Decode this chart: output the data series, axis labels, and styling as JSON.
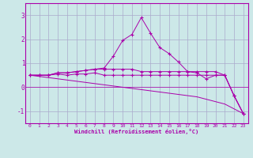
{
  "background_color": "#cce8e8",
  "grid_color": "#aaaacc",
  "line_color": "#aa00aa",
  "xlabel": "Windchill (Refroidissement éolien,°C)",
  "xlim": [
    -0.5,
    23.5
  ],
  "ylim": [
    -1.5,
    3.5
  ],
  "yticks": [
    -1,
    0,
    1,
    2,
    3
  ],
  "xticks": [
    0,
    1,
    2,
    3,
    4,
    5,
    6,
    7,
    8,
    9,
    10,
    11,
    12,
    13,
    14,
    15,
    16,
    17,
    18,
    19,
    20,
    21,
    22,
    23
  ],
  "series": [
    {
      "x": [
        0,
        1,
        2,
        3,
        4,
        5,
        6,
        7,
        8,
        9,
        10,
        11,
        12,
        13,
        14,
        15,
        16,
        17,
        18,
        19,
        20,
        21,
        22,
        23
      ],
      "y": [
        0.5,
        0.45,
        0.4,
        0.35,
        0.3,
        0.25,
        0.2,
        0.15,
        0.1,
        0.05,
        0.0,
        -0.05,
        -0.1,
        -0.15,
        -0.2,
        -0.25,
        -0.3,
        -0.35,
        -0.4,
        -0.5,
        -0.6,
        -0.7,
        -0.9,
        -1.1
      ],
      "marker": null
    },
    {
      "x": [
        0,
        1,
        2,
        3,
        4,
        5,
        6,
        7,
        8,
        9,
        10,
        11,
        12,
        13,
        14,
        15,
        16,
        17,
        18,
        19,
        20,
        21,
        22,
        23
      ],
      "y": [
        0.5,
        0.5,
        0.5,
        0.55,
        0.5,
        0.55,
        0.55,
        0.6,
        0.5,
        0.5,
        0.5,
        0.5,
        0.5,
        0.5,
        0.5,
        0.5,
        0.5,
        0.5,
        0.5,
        0.5,
        0.5,
        0.5,
        -0.35,
        -1.1
      ],
      "marker": "+"
    },
    {
      "x": [
        0,
        1,
        2,
        3,
        4,
        5,
        6,
        7,
        8,
        9,
        10,
        11,
        12,
        13,
        14,
        15,
        16,
        17,
        18,
        19,
        20,
        21,
        22,
        23
      ],
      "y": [
        0.5,
        0.5,
        0.5,
        0.6,
        0.6,
        0.65,
        0.7,
        0.75,
        0.75,
        0.75,
        0.75,
        0.75,
        0.65,
        0.65,
        0.65,
        0.65,
        0.65,
        0.65,
        0.65,
        0.65,
        0.65,
        0.5,
        -0.35,
        -1.1
      ],
      "marker": "+"
    },
    {
      "x": [
        0,
        1,
        2,
        3,
        4,
        5,
        6,
        7,
        8,
        9,
        10,
        11,
        12,
        13,
        14,
        15,
        16,
        17,
        18,
        19,
        20,
        21,
        22,
        23
      ],
      "y": [
        0.5,
        0.5,
        0.5,
        0.6,
        0.6,
        0.65,
        0.7,
        0.75,
        0.8,
        1.3,
        1.95,
        2.2,
        2.9,
        2.25,
        1.65,
        1.4,
        1.05,
        0.65,
        0.6,
        0.35,
        0.5,
        0.5,
        -0.35,
        -1.1
      ],
      "marker": "+"
    }
  ]
}
